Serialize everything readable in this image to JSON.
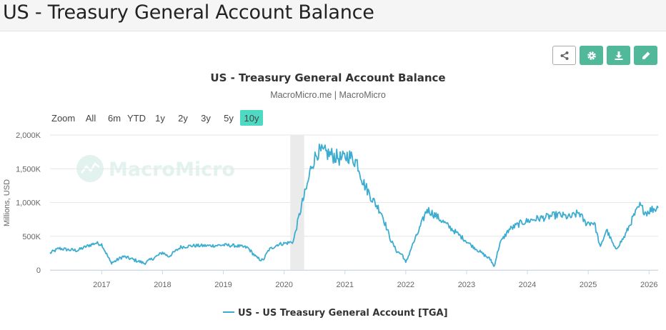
{
  "page": {
    "title": "US - Treasury General Account Balance"
  },
  "toolbar": {
    "buttons": [
      "share-icon",
      "gear-icon",
      "download-icon",
      "edit-icon"
    ]
  },
  "colors": {
    "accent": "#52b89a",
    "series": "#3cacd0",
    "active_zoom": "#4dd9c2"
  },
  "zoom": {
    "label": "Zoom",
    "options": [
      "All",
      "6m",
      "YTD",
      "1y",
      "2y",
      "3y",
      "5y",
      "10y"
    ],
    "active": "10y"
  },
  "watermark": "MacroMicro",
  "chart_data": {
    "type": "line",
    "title": "US - Treasury General Account Balance",
    "subtitle": "MacroMicro.me | MacroMicro",
    "ylabel": "Millions, USD",
    "xlabel": "",
    "ylim": [
      0,
      2000000
    ],
    "yticks": [
      0,
      500000,
      1000000,
      1500000,
      2000000
    ],
    "ytick_labels": [
      "0",
      "500K",
      "1,000K",
      "1,500K",
      "2,000K"
    ],
    "xlim": [
      2016.15,
      2026.15
    ],
    "xticks": [
      2017,
      2018,
      2019,
      2020,
      2021,
      2022,
      2023,
      2024,
      2025,
      2026
    ],
    "xtick_labels": [
      "2017",
      "2018",
      "2019",
      "2020",
      "2021",
      "2022",
      "2023",
      "2024",
      "2025",
      "2026"
    ],
    "grid": true,
    "legend_position": "bottom-center",
    "recession_band": [
      2020.1,
      2020.33
    ],
    "series": [
      {
        "name": "US - US Treasury General Account [TGA]",
        "x": [
          2016.15,
          2016.3,
          2016.45,
          2016.6,
          2016.75,
          2016.9,
          2017.0,
          2017.15,
          2017.2,
          2017.35,
          2017.5,
          2017.7,
          2017.9,
          2018.0,
          2018.1,
          2018.3,
          2018.5,
          2018.8,
          2019.0,
          2019.2,
          2019.4,
          2019.55,
          2019.65,
          2019.75,
          2019.9,
          2020.05,
          2020.15,
          2020.22,
          2020.3,
          2020.38,
          2020.45,
          2020.55,
          2020.7,
          2020.85,
          2020.95,
          2021.05,
          2021.2,
          2021.3,
          2021.45,
          2021.6,
          2021.75,
          2021.85,
          2021.95,
          2022.0,
          2022.1,
          2022.2,
          2022.35,
          2022.5,
          2022.7,
          2022.9,
          2023.1,
          2023.25,
          2023.4,
          2023.45,
          2023.55,
          2023.7,
          2023.9,
          2024.1,
          2024.3,
          2024.5,
          2024.7,
          2024.85,
          2024.95,
          2025.1,
          2025.2,
          2025.3,
          2025.45,
          2025.6,
          2025.75,
          2025.85,
          2025.95,
          2026.05,
          2026.15
        ],
        "y": [
          250000,
          320000,
          300000,
          290000,
          350000,
          400000,
          380000,
          110000,
          120000,
          200000,
          160000,
          100000,
          200000,
          260000,
          200000,
          340000,
          360000,
          360000,
          370000,
          360000,
          330000,
          180000,
          140000,
          300000,
          380000,
          400000,
          420000,
          700000,
          1000000,
          1250000,
          1550000,
          1750000,
          1730000,
          1680000,
          1640000,
          1700000,
          1600000,
          1300000,
          1050000,
          850000,
          450000,
          280000,
          220000,
          100000,
          350000,
          550000,
          900000,
          800000,
          650000,
          500000,
          350000,
          250000,
          150000,
          50000,
          400000,
          600000,
          700000,
          750000,
          780000,
          820000,
          780000,
          850000,
          700000,
          700000,
          330000,
          600000,
          300000,
          500000,
          800000,
          950000,
          850000,
          900000,
          920000
        ]
      }
    ]
  }
}
